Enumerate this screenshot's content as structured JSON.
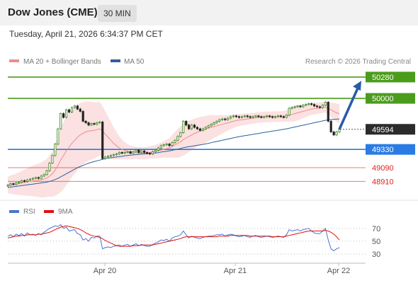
{
  "header": {
    "instrument": "Dow Jones (CME)",
    "interval": "30 MIN",
    "datetime": "Tuesday, April 21, 2026 6:34:37 PM CET"
  },
  "legend": {
    "ma20_label": "MA 20 + Bollinger Bands",
    "ma20_color": "#f08c8c",
    "ma50_label": "MA 50",
    "ma50_color": "#2e5f9e",
    "credit": "Research © 2026 Trading Central"
  },
  "chart_data": [
    {
      "type": "candlestick",
      "y_range": [
        48700,
        50400
      ],
      "x_ticks": [
        "Apr 20",
        "Apr 21",
        "Apr 22"
      ],
      "grid": false,
      "levels": [
        {
          "value": 50280,
          "label": "50280",
          "color": "#4c9c1c",
          "kind": "resistance"
        },
        {
          "value": 50000,
          "label": "50000",
          "color": "#4c9c1c",
          "kind": "resistance"
        },
        {
          "value": 49594,
          "label": "49594",
          "color": "#2b2b2b",
          "kind": "last-price"
        },
        {
          "value": 49330,
          "label": "49330",
          "color": "#2b7be4",
          "kind": "pivot"
        },
        {
          "value": 49090,
          "label": "49090",
          "color": "#e02020",
          "kind": "support"
        },
        {
          "value": 48910,
          "label": "48910",
          "color": "#e02020",
          "kind": "support"
        }
      ],
      "projection": {
        "from": 49594,
        "to": 50230,
        "color": "#2a5aa8"
      },
      "close": [
        48860,
        48880,
        48870,
        48890,
        48900,
        48920,
        48910,
        48930,
        48940,
        48950,
        48960,
        48950,
        48980,
        49000,
        49050,
        49150,
        49250,
        49400,
        49600,
        49800,
        49750,
        49850,
        49820,
        49880,
        49900,
        49860,
        49830,
        49700,
        49680,
        49650,
        49670,
        49660,
        49680,
        49690,
        49210,
        49230,
        49240,
        49250,
        49260,
        49270,
        49290,
        49280,
        49290,
        49300,
        49280,
        49300,
        49320,
        49290,
        49310,
        49290,
        49280,
        49270,
        49300,
        49320,
        49350,
        49380,
        49390,
        49400,
        49380,
        49420,
        49450,
        49500,
        49550,
        49700,
        49650,
        49600,
        49650,
        49620,
        49600,
        49580,
        49600,
        49620,
        49640,
        49660,
        49680,
        49700,
        49720,
        49730,
        49720,
        49740,
        49760,
        49770,
        49760,
        49750,
        49760,
        49770,
        49760,
        49750,
        49760,
        49770,
        49760,
        49750,
        49760,
        49770,
        49760,
        49750,
        49760,
        49770,
        49760,
        49750,
        49780,
        49870,
        49880,
        49890,
        49900,
        49890,
        49910,
        49920,
        49930,
        49920,
        49900,
        49890,
        49880,
        49910,
        49950,
        49700,
        49560,
        49520,
        49560,
        49594
      ],
      "ma20": [
        48860,
        48870,
        48870,
        48875,
        48880,
        48890,
        48895,
        48900,
        48910,
        48915,
        48920,
        48925,
        48930,
        48940,
        48955,
        48980,
        49010,
        49060,
        49120,
        49190,
        49250,
        49310,
        49360,
        49410,
        49450,
        49490,
        49520,
        49540,
        49560,
        49570,
        49575,
        49580,
        49590,
        49600,
        49570,
        49530,
        49490,
        49450,
        49410,
        49380,
        49350,
        49330,
        49315,
        49300,
        49290,
        49285,
        49285,
        49280,
        49280,
        49280,
        49285,
        49290,
        49295,
        49300,
        49310,
        49320,
        49330,
        49340,
        49350,
        49370,
        49390,
        49410,
        49430,
        49460,
        49480,
        49500,
        49520,
        49540,
        49555,
        49570,
        49580,
        49595,
        49610,
        49620,
        49630,
        49640,
        49650,
        49660,
        49670,
        49680,
        49690,
        49700,
        49710,
        49715,
        49720,
        49725,
        49730,
        49735,
        49740,
        49745,
        49750,
        49752,
        49755,
        49757,
        49758,
        49760,
        49760,
        49761,
        49762,
        49763,
        49770,
        49780,
        49790,
        49800,
        49810,
        49820,
        49830,
        49840,
        49850,
        49860,
        49865,
        49870,
        49875,
        49880,
        49885,
        49870,
        49850,
        49830,
        49810,
        49800
      ],
      "ma50": [
        48830,
        48835,
        48840,
        48845,
        48850,
        48855,
        48860,
        48865,
        48870,
        48875,
        48880,
        48885,
        48890,
        48895,
        48900,
        48910,
        48920,
        48935,
        48950,
        48970,
        48990,
        49010,
        49030,
        49050,
        49070,
        49090,
        49105,
        49120,
        49135,
        49150,
        49160,
        49170,
        49180,
        49190,
        49200,
        49210,
        49215,
        49220,
        49225,
        49230,
        49235,
        49240,
        49245,
        49250,
        49255,
        49258,
        49262,
        49265,
        49268,
        49270,
        49272,
        49275,
        49278,
        49282,
        49288,
        49295,
        49300,
        49305,
        49310,
        49318,
        49326,
        49334,
        49342,
        49352,
        49360,
        49366,
        49372,
        49378,
        49384,
        49390,
        49396,
        49402,
        49410,
        49418,
        49426,
        49434,
        49442,
        49450,
        49458,
        49466,
        49474,
        49482,
        49490,
        49498,
        49504,
        49510,
        49516,
        49522,
        49528,
        49534,
        49540,
        49546,
        49552,
        49558,
        49564,
        49570,
        49576,
        49582,
        49588,
        49594,
        49600,
        49608,
        49616,
        49624,
        49632,
        49640,
        49648,
        49656,
        49664,
        49672,
        49680,
        49688,
        49696,
        49704,
        49712,
        49718,
        49722,
        49725,
        49727,
        49728
      ],
      "bollinger_width": [
        110,
        120,
        130,
        140,
        150,
        160,
        170,
        180,
        190,
        200,
        210,
        220,
        230,
        240,
        250,
        270,
        300,
        340,
        380,
        420,
        440,
        450,
        450,
        445,
        440,
        430,
        420,
        410,
        400,
        390,
        380,
        370,
        360,
        350,
        330,
        300,
        270,
        240,
        210,
        180,
        150,
        130,
        110,
        100,
        90,
        85,
        80,
        80,
        80,
        80,
        80,
        82,
        85,
        90,
        95,
        100,
        110,
        120,
        130,
        150,
        170,
        190,
        200,
        210,
        210,
        205,
        200,
        195,
        190,
        185,
        180,
        175,
        170,
        160,
        150,
        140,
        130,
        120,
        110,
        100,
        95,
        90,
        85,
        80,
        78,
        76,
        74,
        72,
        70,
        70,
        70,
        70,
        70,
        70,
        70,
        70,
        70,
        70,
        70,
        70,
        75,
        85,
        95,
        100,
        100,
        95,
        90,
        85,
        80,
        78,
        76,
        74,
        72,
        70,
        70,
        80,
        95,
        110,
        120,
        125
      ]
    },
    {
      "type": "line",
      "title": "RSI",
      "y_range": [
        20,
        82
      ],
      "y_ticks": [
        70,
        50,
        30
      ],
      "series": [
        {
          "name": "RSI",
          "color": "#4a74c9",
          "values": [
            58,
            60,
            57,
            61,
            59,
            62,
            58,
            63,
            60,
            61,
            59,
            62,
            60,
            64,
            67,
            70,
            72,
            74,
            73,
            76,
            70,
            72,
            66,
            67,
            68,
            62,
            60,
            52,
            54,
            50,
            56,
            55,
            58,
            58,
            38,
            40,
            41,
            40,
            42,
            43,
            44,
            42,
            44,
            45,
            42,
            44,
            46,
            43,
            45,
            43,
            42,
            42,
            45,
            47,
            49,
            52,
            51,
            53,
            50,
            55,
            57,
            58,
            60,
            66,
            60,
            55,
            58,
            56,
            55,
            54,
            56,
            57,
            58,
            58,
            59,
            60,
            60,
            61,
            58,
            60,
            61,
            60,
            58,
            57,
            58,
            59,
            57,
            56,
            58,
            59,
            57,
            56,
            57,
            58,
            57,
            56,
            57,
            58,
            57,
            56,
            60,
            68,
            66,
            67,
            68,
            66,
            68,
            69,
            70,
            66,
            63,
            62,
            62,
            66,
            70,
            52,
            38,
            35,
            38,
            40
          ]
        },
        {
          "name": "9MA",
          "color": "#e01010",
          "values": [
            55,
            56,
            57,
            58,
            58,
            59,
            59,
            60,
            60,
            60,
            60,
            61,
            61,
            62,
            63,
            64,
            66,
            68,
            70,
            72,
            73,
            74,
            73,
            72,
            71,
            70,
            68,
            66,
            63,
            61,
            59,
            58,
            57,
            56,
            54,
            51,
            49,
            47,
            45,
            43,
            42,
            42,
            42,
            42,
            42,
            43,
            43,
            43,
            44,
            44,
            44,
            44,
            44,
            45,
            46,
            47,
            48,
            49,
            50,
            51,
            52,
            53,
            54,
            56,
            57,
            57,
            57,
            57,
            57,
            57,
            57,
            57,
            57,
            57,
            57,
            57,
            58,
            58,
            58,
            58,
            59,
            59,
            59,
            59,
            59,
            59,
            59,
            58,
            58,
            58,
            58,
            58,
            58,
            58,
            58,
            57,
            57,
            57,
            57,
            57,
            58,
            59,
            60,
            61,
            62,
            63,
            64,
            65,
            66,
            66,
            66,
            66,
            66,
            66,
            67,
            66,
            64,
            61,
            57,
            52
          ]
        }
      ]
    }
  ]
}
